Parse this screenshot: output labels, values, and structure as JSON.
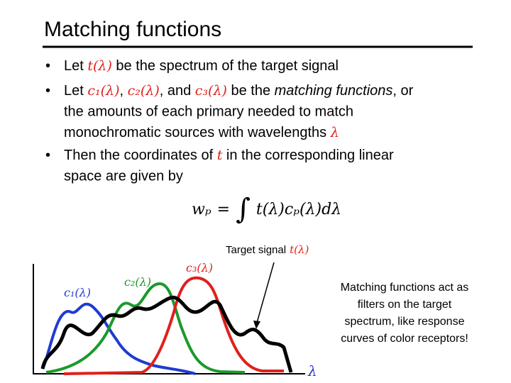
{
  "title": "Matching functions",
  "bullets": [
    [
      [
        {
          "text": "Let "
        },
        {
          "text": "t(λ)",
          "math": true
        },
        {
          "text": " be the spectrum of the target signal"
        }
      ]
    ],
    [
      [
        {
          "text": "Let "
        },
        {
          "text": "c₁(λ)",
          "math": true
        },
        {
          "text": ", "
        },
        {
          "text": "c₂(λ)",
          "math": true
        },
        {
          "text": ", and "
        },
        {
          "text": "c₃(λ)",
          "math": true
        },
        {
          "text": " be the "
        },
        {
          "text": "matching functions",
          "italic": true
        },
        {
          "text": ", or"
        }
      ],
      [
        {
          "text": "the amounts of each primary needed to match"
        }
      ],
      [
        {
          "text": "monochromatic sources with wavelengths "
        },
        {
          "text": "λ",
          "math": true
        }
      ]
    ],
    [
      [
        {
          "text": "Then the coordinates of "
        },
        {
          "text": "t",
          "math": true
        },
        {
          "text": " in the corresponding linear"
        }
      ],
      [
        {
          "text": "space are given by"
        }
      ]
    ]
  ],
  "math_color": "#e0201c",
  "equation": [
    "wₚ",
    "=",
    "∫",
    "t(λ)cₚ(λ)dλ"
  ],
  "figure": {
    "target_label": "Target signal",
    "target_math": "t(λ)",
    "curve_labels": [
      {
        "text": "c₁(λ)",
        "color": "#1f3bd0"
      },
      {
        "text": "c₂(λ)",
        "color": "#1a9a2a"
      },
      {
        "text": "c₃(λ)",
        "color": "#e0201c"
      }
    ],
    "axis_label": "λ"
  },
  "caption": [
    "Matching functions act as",
    "filters on the target",
    "spectrum, like response",
    "curves of color receptors!"
  ]
}
